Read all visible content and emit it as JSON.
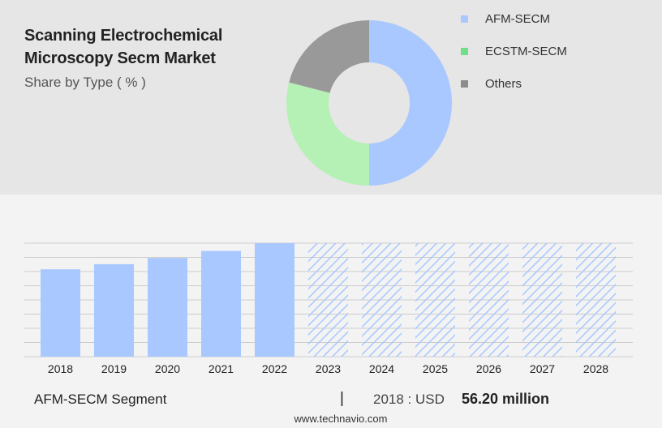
{
  "title": "Scanning Electrochemical Microscopy Secm Market",
  "subtitle": "Share by Type ( % )",
  "colors": {
    "afm": "#a9c8ff",
    "ecstm": "#b5f0b5",
    "others": "#999999",
    "legend_ecstm": "#6ee08a",
    "legend_others": "#8c8c8c",
    "bar": "#a9c8ff",
    "hatch": "#a9c8ff",
    "grid": "#cccccc"
  },
  "legend": [
    {
      "label": "AFM-SECM",
      "color": "#a9c8ff"
    },
    {
      "label": "ECSTM-SECM",
      "color": "#6ee08a"
    },
    {
      "label": "Others",
      "color": "#8c8c8c"
    }
  ],
  "chart_data": [
    {
      "type": "pie",
      "variant": "donut",
      "labels": [
        "AFM-SECM",
        "ECSTM-SECM",
        "Others"
      ],
      "values": [
        50,
        29,
        21
      ],
      "unit": "%"
    },
    {
      "type": "bar",
      "categories": [
        "2018",
        "2019",
        "2020",
        "2021",
        "2022",
        "2023",
        "2024",
        "2025",
        "2026",
        "2027",
        "2028"
      ],
      "values": [
        56.2,
        59.5,
        63.5,
        68,
        73,
        73,
        73,
        73,
        73,
        73,
        73
      ],
      "forecast_from": "2023",
      "forecast_style": "hatched",
      "ylim": [
        0,
        73
      ],
      "grid": true
    }
  ],
  "footer": {
    "segment": "AFM-SECM Segment",
    "separator": "|",
    "year_label": "2018 : USD",
    "value": "56.20 million",
    "url": "www.technavio.com"
  }
}
